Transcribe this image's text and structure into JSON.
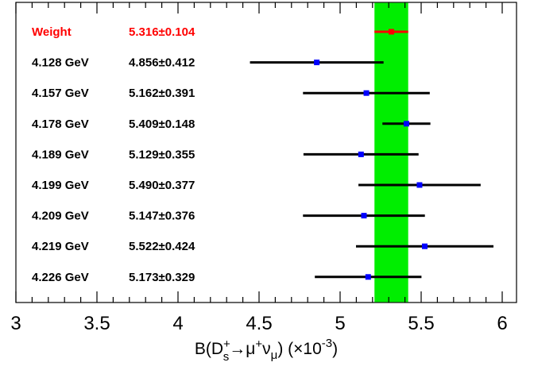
{
  "chart_data": {
    "type": "errorbar",
    "xlim": [
      3,
      6
    ],
    "x_ticks": [
      "3",
      "3.5",
      "4",
      "4.5",
      "5",
      "5.5",
      "6"
    ],
    "xlabel": {
      "prefix": "B(D",
      "sup1": "+",
      "sub1": "s",
      "arrow": "→μ",
      "sup2": "+",
      "nu": "ν",
      "sub2": "μ",
      "suffix": ") (×10",
      "sup3": "-3",
      "end": ")"
    },
    "band": {
      "center": 5.316,
      "error": 0.104,
      "color": "#00ee00"
    },
    "rows": [
      {
        "label": "Weight",
        "value_text": "5.316±0.104",
        "value": 5.316,
        "error": 0.104,
        "highlight": true
      },
      {
        "label": "4.128 GeV",
        "value_text": "4.856±0.412",
        "value": 4.856,
        "error": 0.412,
        "highlight": false
      },
      {
        "label": "4.157 GeV",
        "value_text": "5.162±0.391",
        "value": 5.162,
        "error": 0.391,
        "highlight": false
      },
      {
        "label": "4.178 GeV",
        "value_text": "5.409±0.148",
        "value": 5.409,
        "error": 0.148,
        "highlight": false
      },
      {
        "label": "4.189 GeV",
        "value_text": "5.129±0.355",
        "value": 5.129,
        "error": 0.355,
        "highlight": false
      },
      {
        "label": "4.199 GeV",
        "value_text": "5.490±0.377",
        "value": 5.49,
        "error": 0.377,
        "highlight": false
      },
      {
        "label": "4.209 GeV",
        "value_text": "5.147±0.376",
        "value": 5.147,
        "error": 0.376,
        "highlight": false
      },
      {
        "label": "4.219 GeV",
        "value_text": "5.522±0.424",
        "value": 5.522,
        "error": 0.424,
        "highlight": false
      },
      {
        "label": "4.226 GeV",
        "value_text": "5.173±0.329",
        "value": 5.173,
        "error": 0.329,
        "highlight": false
      }
    ],
    "colors": {
      "highlight": "#ff0000",
      "point": "#0000ff",
      "bar": "#000000",
      "axis": "#000000"
    }
  }
}
